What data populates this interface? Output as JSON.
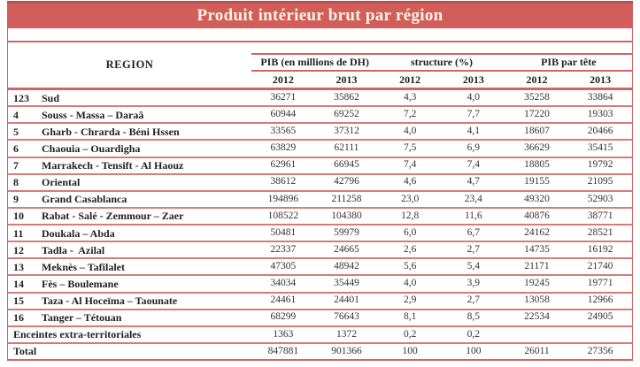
{
  "title": "Produit intérieur brut par région",
  "colors": {
    "title_bar_background": "#d25e5c",
    "title_bar_top_edge": "#bf4e4d",
    "table_border": "#cf6661",
    "row_separator": "#d77b76",
    "title_text": "#fcf4e6",
    "body_text": "#1f1f1f"
  },
  "table": {
    "region_header": "REGION",
    "groups": [
      {
        "label": "PIB (en millions de DH)"
      },
      {
        "label": "structure (%)"
      },
      {
        "label": "PIB par tête"
      }
    ],
    "years": [
      "2012",
      "2013",
      "2012",
      "2013",
      "2012",
      "2013"
    ],
    "rows": [
      {
        "num": "123",
        "name": "Sud",
        "values": [
          "36271",
          "35862",
          "4,3",
          "4,0",
          "35258",
          "33864"
        ]
      },
      {
        "num": "4",
        "name": "Souss - Massa – Daraâ",
        "values": [
          "60944",
          "69252",
          "7,2",
          "7,7",
          "17220",
          "19303"
        ]
      },
      {
        "num": "5",
        "name": "Gharb - Chrarda - Béni Hssen",
        "values": [
          "33565",
          "37312",
          "4,0",
          "4,1",
          "18607",
          "20466"
        ]
      },
      {
        "num": "6",
        "name": "Chaouia – Ouardigha",
        "values": [
          "63829",
          "62111",
          "7,5",
          "6,9",
          "36629",
          "35415"
        ]
      },
      {
        "num": "7",
        "name": "Marrakech - Tensift - Al Haouz",
        "values": [
          "62961",
          "66945",
          "7,4",
          "7,4",
          "18805",
          "19792"
        ]
      },
      {
        "num": "8",
        "name": "Oriental",
        "values": [
          "38612",
          "42796",
          "4,6",
          "4,7",
          "19155",
          "21095"
        ]
      },
      {
        "num": "9",
        "name": "Grand Casablanca",
        "values": [
          "194896",
          "211258",
          "23,0",
          "23,4",
          "49320",
          "52903"
        ]
      },
      {
        "num": "10",
        "name": "Rabat - Salé - Zemmour – Zaer",
        "values": [
          "108522",
          "104380",
          "12,8",
          "11,6",
          "40876",
          "38771"
        ]
      },
      {
        "num": "11",
        "name": "Doukala – Abda",
        "values": [
          "50481",
          "59979",
          "6,0",
          "6,7",
          "24162",
          "28521"
        ]
      },
      {
        "num": "12",
        "name": "Tadla -  Azilal",
        "values": [
          "22337",
          "24665",
          "2,6",
          "2,7",
          "14735",
          "16192"
        ]
      },
      {
        "num": "13",
        "name": "Meknès – Tafilalet",
        "values": [
          "47305",
          "48942",
          "5,6",
          "5,4",
          "21171",
          "21740"
        ]
      },
      {
        "num": "14",
        "name": "Fès – Boulemane",
        "values": [
          "34034",
          "35449",
          "4,0",
          "3,9",
          "19245",
          "19771"
        ]
      },
      {
        "num": "15",
        "name": "Taza - Al Hoceïma – Taounate",
        "values": [
          "24461",
          "24401",
          "2,9",
          "2,7",
          "13058",
          "12966"
        ]
      },
      {
        "num": "16",
        "name": "Tanger – Tétouan",
        "values": [
          "68299",
          "76643",
          "8,1",
          "8,5",
          "22534",
          "24905"
        ]
      },
      {
        "num": "",
        "name": "Enceintes extra-territoriales",
        "full": true,
        "values": [
          "1363",
          "1372",
          "0,2",
          "0,2",
          "",
          ""
        ]
      },
      {
        "num": "",
        "name": "Total",
        "full": true,
        "values": [
          "847881",
          "901366",
          "100",
          "100",
          "26011",
          "27356"
        ]
      }
    ]
  }
}
